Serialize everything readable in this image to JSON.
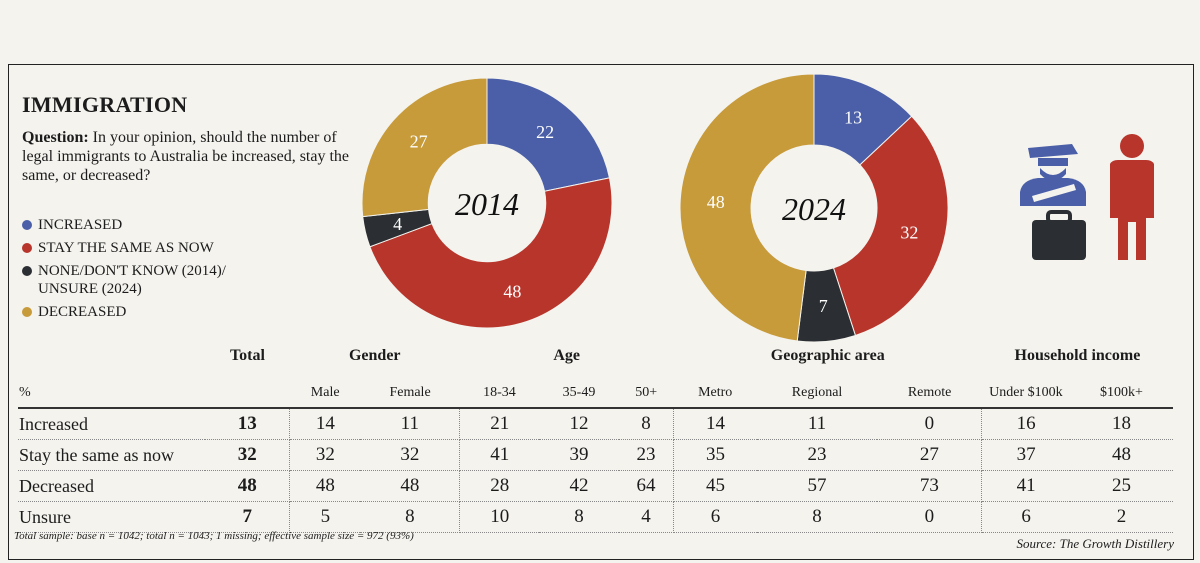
{
  "title": "IMMIGRATION",
  "question_label": "Question:",
  "question_text": "In your opinion, should the number of legal immigrants to Australia be increased, stay the same, or decreased?",
  "legend": [
    {
      "label": "INCREASED",
      "color": "#4a5fa8"
    },
    {
      "label": "STAY THE SAME AS NOW",
      "color": "#b8352b"
    },
    {
      "label": "NONE/DON'T KNOW (2014)/ UNSURE (2024)",
      "color": "#2b2f33"
    },
    {
      "label": "DECREASED",
      "color": "#c79a3a"
    }
  ],
  "chart_data": [
    {
      "type": "pie",
      "title": "2014",
      "slices": [
        {
          "label": "Increased",
          "value": 22,
          "color": "#4a5fa8"
        },
        {
          "label": "Stay the same as now",
          "value": 48,
          "color": "#b8352b"
        },
        {
          "label": "None/don't know",
          "value": 4,
          "color": "#2b2f33"
        },
        {
          "label": "Decreased",
          "value": 27,
          "color": "#c79a3a"
        }
      ]
    },
    {
      "type": "pie",
      "title": "2024",
      "slices": [
        {
          "label": "Increased",
          "value": 13,
          "color": "#4a5fa8"
        },
        {
          "label": "Stay the same as now",
          "value": 32,
          "color": "#b8352b"
        },
        {
          "label": "Unsure",
          "value": 7,
          "color": "#2b2f33"
        },
        {
          "label": "Decreased",
          "value": 48,
          "color": "#c79a3a"
        }
      ]
    },
    {
      "type": "table",
      "corner_label": "%",
      "groups": [
        {
          "label": "Total",
          "span": 1
        },
        {
          "label": "Gender",
          "span": 2
        },
        {
          "label": "Age",
          "span": 3
        },
        {
          "label": "Geographic area",
          "span": 3
        },
        {
          "label": "Household income",
          "span": 2
        }
      ],
      "columns": [
        "",
        "Male",
        "Female",
        "18-34",
        "35-49",
        "50+",
        "Metro",
        "Regional",
        "Remote",
        "Under $100k",
        "$100k+"
      ],
      "rows": [
        {
          "label": "Increased",
          "values": [
            13,
            14,
            11,
            21,
            12,
            8,
            14,
            11,
            0,
            16,
            18
          ]
        },
        {
          "label": "Stay the same as now",
          "values": [
            32,
            32,
            32,
            41,
            39,
            23,
            35,
            23,
            27,
            37,
            48
          ]
        },
        {
          "label": "Decreased",
          "values": [
            48,
            48,
            48,
            28,
            42,
            64,
            45,
            57,
            73,
            41,
            25
          ]
        },
        {
          "label": "Unsure",
          "values": [
            7,
            5,
            8,
            10,
            8,
            4,
            6,
            8,
            0,
            6,
            2
          ]
        }
      ]
    }
  ],
  "footnote": "Total sample: base n = 1042; total n = 1043; 1 missing; effective sample size = 972 (93%)",
  "source": "Source: The Growth Distillery",
  "icons": {
    "pictogram": "immigration-officer-and-traveller-icon"
  }
}
